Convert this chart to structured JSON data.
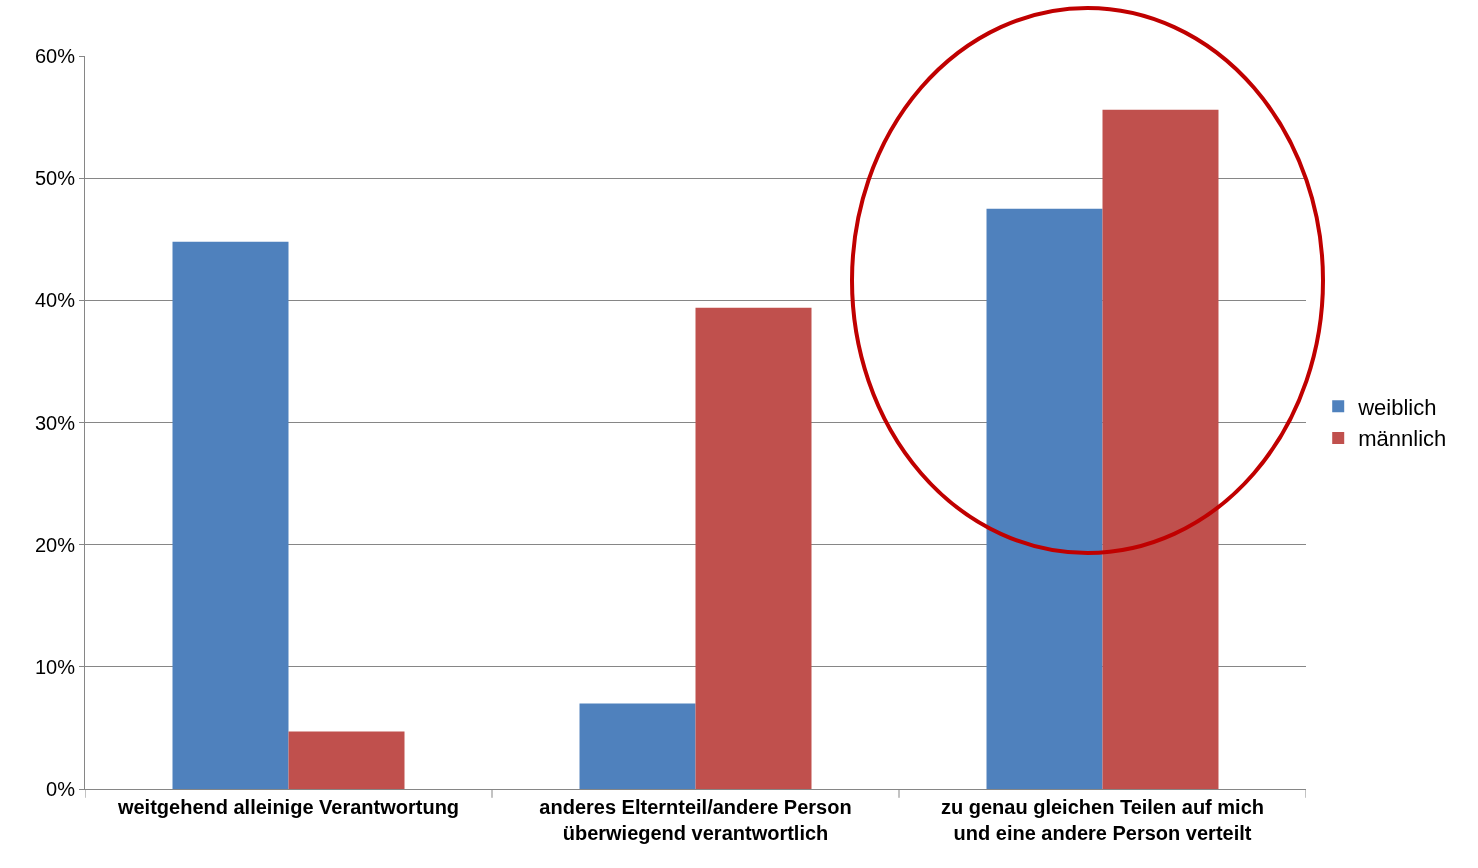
{
  "chart_data": {
    "type": "bar",
    "categories": [
      "weitgehend alleinige Verantwortung",
      "anderes Elternteil/andere Person überwiegend verantwortlich",
      "zu genau gleichen Teilen auf mich und eine andere Person verteilt"
    ],
    "series": [
      {
        "name": "weiblich",
        "color": "#4f81bd",
        "values": [
          44.8,
          7.0,
          47.5
        ]
      },
      {
        "name": "männlich",
        "color": "#c0504d",
        "values": [
          4.7,
          39.4,
          55.6
        ]
      }
    ],
    "ylim": [
      0,
      60
    ],
    "yticks": [
      {
        "value": 0,
        "label": "0%"
      },
      {
        "value": 10,
        "label": "10%"
      },
      {
        "value": 20,
        "label": "20%"
      },
      {
        "value": 30,
        "label": "30%"
      },
      {
        "value": 40,
        "label": "40%"
      },
      {
        "value": 50,
        "label": "50%"
      },
      {
        "value": 60,
        "label": "60%"
      }
    ],
    "grid": "y",
    "legend": "right"
  }
}
